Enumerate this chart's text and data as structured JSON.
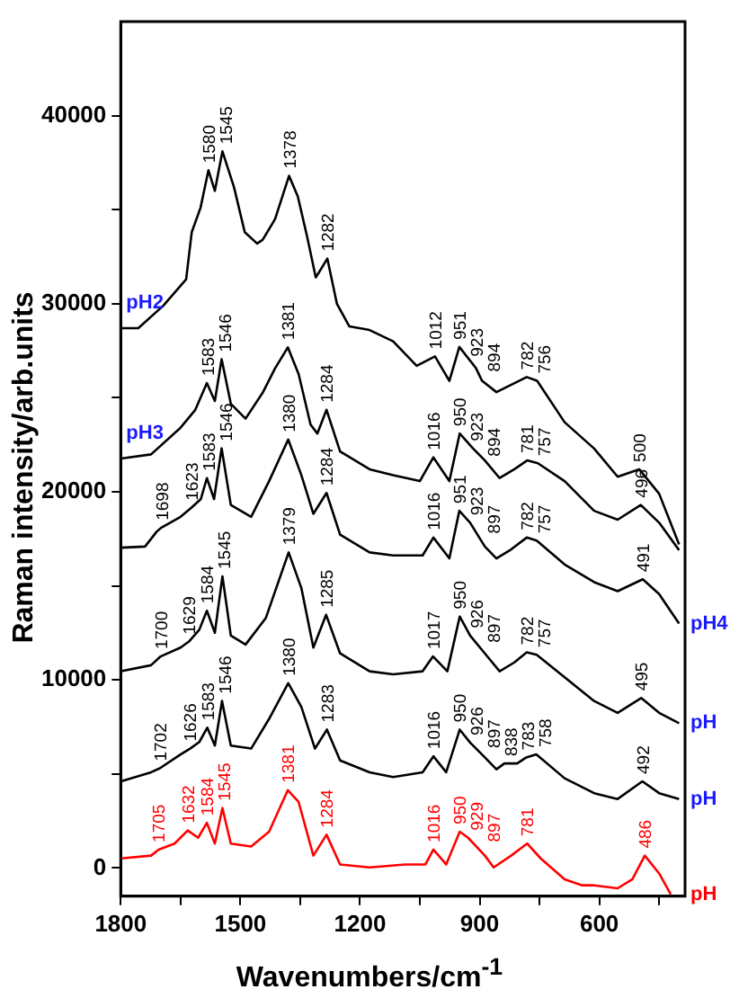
{
  "chart_data": {
    "type": "line",
    "xlabel": "Wavenumbers/cm$^{-1}$",
    "ylabel": "Raman intensity/arb.units",
    "xlim": [
      1800,
      385
    ],
    "xticks": [
      1800,
      {
        "value": 1650,
        "label": null
      },
      1500,
      {
        "value": 1350,
        "label": null
      },
      1200,
      {
        "value": 1050,
        "label": null
      },
      900,
      {
        "value": 750,
        "label": null
      },
      600,
      {
        "value": 450,
        "label": null
      }
    ],
    "ylim": [
      -1500,
      45000
    ],
    "yticks": [
      0,
      {
        "value": 5000,
        "label": null
      },
      10000,
      {
        "value": 15000,
        "label": null
      },
      20000,
      {
        "value": 25000,
        "label": null
      },
      30000,
      {
        "value": 35000,
        "label": null
      },
      40000
    ],
    "grid": false,
    "legend": false,
    "marker": "none",
    "line_style": "solid",
    "series": [
      {
        "name": "pH2",
        "color": "#000000",
        "x": [
          1800,
          1756,
          1693,
          1636,
          1622,
          1600,
          1580,
          1564,
          1545,
          1516,
          1489,
          1458,
          1444,
          1413,
          1378,
          1356,
          1333,
          1311,
          1302,
          1282,
          1258,
          1227,
          1176,
          1117,
          1058,
          1012,
          976,
          951,
          910,
          894,
          858,
          782,
          756,
          687,
          613,
          554,
          500,
          450,
          400
        ],
        "values": [
          28700,
          28700,
          29900,
          31300,
          33800,
          35100,
          37100,
          36000,
          38100,
          36200,
          33800,
          33200,
          33400,
          34500,
          36800,
          35700,
          33600,
          31400,
          31700,
          32400,
          30000,
          28800,
          28600,
          28000,
          26700,
          27200,
          25900,
          27700,
          26600,
          25900,
          25300,
          26100,
          25900,
          23700,
          22300,
          20800,
          21200,
          19900,
          17200
        ]
      },
      {
        "name": "pH3",
        "color": "#000000",
        "x": [
          1799,
          1724,
          1650,
          1613,
          1584,
          1564,
          1547,
          1524,
          1487,
          1443,
          1413,
          1381,
          1354,
          1324,
          1307,
          1284,
          1250,
          1176,
          1117,
          1050,
          1016,
          976,
          950,
          917,
          887,
          850,
          813,
          781,
          754,
          687,
          613,
          554,
          496,
          450,
          400
        ],
        "values": [
          21770,
          21990,
          23410,
          24360,
          25780,
          24830,
          27050,
          24680,
          23890,
          25310,
          26570,
          27680,
          26260,
          23570,
          23100,
          24360,
          22150,
          21200,
          20880,
          20570,
          21830,
          20570,
          23100,
          22310,
          21670,
          20730,
          21200,
          21670,
          21520,
          20570,
          18990,
          18520,
          19300,
          18360,
          16900
        ]
      },
      {
        "name": "pH4",
        "color": "#000000",
        "x": [
          1799,
          1739,
          1710,
          1698,
          1650,
          1623,
          1599,
          1584,
          1566,
          1547,
          1524,
          1473,
          1428,
          1380,
          1347,
          1317,
          1284,
          1250,
          1176,
          1117,
          1043,
          1016,
          976,
          951,
          924,
          887,
          858,
          821,
          782,
          757,
          687,
          613,
          554,
          491,
          450,
          400
        ],
        "values": [
          17030,
          17090,
          17880,
          18100,
          18670,
          19150,
          19620,
          20730,
          19620,
          22310,
          19300,
          18670,
          20570,
          22780,
          20880,
          18830,
          19940,
          17720,
          16780,
          16620,
          16620,
          17570,
          16460,
          18990,
          18360,
          17090,
          16460,
          16940,
          17570,
          17410,
          16140,
          15200,
          14720,
          15350,
          14560,
          13000
        ]
      },
      {
        "name": "pH",
        "color": "#000000",
        "x": [
          1799,
          1724,
          1700,
          1650,
          1629,
          1603,
          1584,
          1564,
          1545,
          1524,
          1487,
          1436,
          1379,
          1347,
          1317,
          1285,
          1250,
          1176,
          1117,
          1043,
          1017,
          981,
          950,
          924,
          887,
          850,
          813,
          782,
          757,
          687,
          613,
          554,
          495,
          450,
          400
        ],
        "values": [
          10460,
          10780,
          11250,
          11720,
          12040,
          12670,
          13680,
          12510,
          15510,
          12360,
          11880,
          13300,
          16780,
          14880,
          11720,
          13460,
          11410,
          10460,
          10300,
          10460,
          11250,
          10460,
          13370,
          12360,
          11410,
          10460,
          10930,
          11470,
          11340,
          10140,
          8880,
          8250,
          9040,
          8250,
          7700
        ]
      },
      {
        "name": "pH",
        "color": "#000000",
        "x": [
          1799,
          1724,
          1702,
          1650,
          1626,
          1603,
          1583,
          1564,
          1546,
          1524,
          1473,
          1428,
          1380,
          1347,
          1313,
          1283,
          1250,
          1176,
          1117,
          1043,
          1016,
          984,
          950,
          924,
          887,
          858,
          838,
          806,
          783,
          758,
          687,
          613,
          554,
          492,
          450,
          400
        ],
        "values": [
          4610,
          5090,
          5300,
          6040,
          6350,
          6700,
          7460,
          6510,
          8880,
          6510,
          6350,
          7930,
          9830,
          8560,
          6350,
          7360,
          5720,
          5090,
          4840,
          5090,
          5940,
          5090,
          7360,
          6670,
          5880,
          5250,
          5560,
          5560,
          5880,
          6040,
          4770,
          3980,
          3670,
          4610,
          3980,
          3670
        ]
      },
      {
        "name": "pH",
        "color": "#ff0000",
        "x": [
          1799,
          1724,
          1705,
          1665,
          1632,
          1606,
          1584,
          1564,
          1545,
          1524,
          1473,
          1428,
          1381,
          1354,
          1317,
          1284,
          1250,
          1176,
          1087,
          1036,
          1016,
          984,
          950,
          929,
          887,
          865,
          821,
          781,
          747,
          687,
          643,
          613,
          554,
          517,
          486,
          450,
          421
        ],
        "values": [
          510,
          660,
          980,
          1300,
          2000,
          1610,
          2400,
          1300,
          3190,
          1300,
          1140,
          1930,
          4140,
          3510,
          660,
          1770,
          190,
          30,
          190,
          190,
          980,
          190,
          1930,
          1610,
          660,
          30,
          660,
          1300,
          510,
          -600,
          -920,
          -920,
          -1080,
          -600,
          660,
          -290,
          -1400
        ]
      }
    ],
    "annotations": [
      {
        "text": "1580",
        "x": 1580,
        "y": 37100
      },
      {
        "text": "1545",
        "x": 1545,
        "y": 38100
      },
      {
        "text": "1378",
        "x": 1378,
        "y": 36800
      },
      {
        "text": "1282",
        "x": 1282,
        "y": 32400
      },
      {
        "text": "1012",
        "x": 1012,
        "y": 27200
      },
      {
        "text": "951",
        "x": 951,
        "y": 27700
      },
      {
        "text": "923",
        "x": 923,
        "y": 26800
      },
      {
        "text": "894",
        "x": 894,
        "y": 26000
      },
      {
        "text": "782",
        "x": 782,
        "y": 26100
      },
      {
        "text": "756",
        "x": 756,
        "y": 25900
      },
      {
        "text": "500",
        "x": 500,
        "y": 21200
      },
      {
        "text": "1583",
        "x": 1583,
        "y": 25780
      },
      {
        "text": "1546",
        "x": 1546,
        "y": 27050
      },
      {
        "text": "1381",
        "x": 1381,
        "y": 27680
      },
      {
        "text": "1284",
        "x": 1284,
        "y": 24360
      },
      {
        "text": "1016",
        "x": 1016,
        "y": 21830
      },
      {
        "text": "950",
        "x": 950,
        "y": 23100
      },
      {
        "text": "923",
        "x": 923,
        "y": 22310
      },
      {
        "text": "894",
        "x": 894,
        "y": 21500
      },
      {
        "text": "781",
        "x": 781,
        "y": 21670
      },
      {
        "text": "757",
        "x": 757,
        "y": 21520
      },
      {
        "text": "496",
        "x": 496,
        "y": 19300
      },
      {
        "text": "1698",
        "x": 1698,
        "y": 18100
      },
      {
        "text": "1623",
        "x": 1623,
        "y": 19150
      },
      {
        "text": "1583",
        "x": 1583,
        "y": 20730
      },
      {
        "text": "1546",
        "x": 1546,
        "y": 22310
      },
      {
        "text": "1380",
        "x": 1380,
        "y": 22780
      },
      {
        "text": "1284",
        "x": 1284,
        "y": 19940
      },
      {
        "text": "1016",
        "x": 1016,
        "y": 17570
      },
      {
        "text": "951",
        "x": 951,
        "y": 18990
      },
      {
        "text": "923",
        "x": 923,
        "y": 18360
      },
      {
        "text": "897",
        "x": 897,
        "y": 17400
      },
      {
        "text": "782",
        "x": 782,
        "y": 17570
      },
      {
        "text": "757",
        "x": 757,
        "y": 17410
      },
      {
        "text": "491",
        "x": 491,
        "y": 15350
      },
      {
        "text": "1700",
        "x": 1700,
        "y": 11250
      },
      {
        "text": "1629",
        "x": 1629,
        "y": 12040
      },
      {
        "text": "1584",
        "x": 1584,
        "y": 13680
      },
      {
        "text": "1545",
        "x": 1545,
        "y": 15510
      },
      {
        "text": "1379",
        "x": 1379,
        "y": 16780
      },
      {
        "text": "1285",
        "x": 1285,
        "y": 13460
      },
      {
        "text": "1017",
        "x": 1017,
        "y": 11250
      },
      {
        "text": "950",
        "x": 950,
        "y": 13370
      },
      {
        "text": "926",
        "x": 926,
        "y": 12360
      },
      {
        "text": "897",
        "x": 897,
        "y": 11600
      },
      {
        "text": "782",
        "x": 782,
        "y": 11470
      },
      {
        "text": "757",
        "x": 757,
        "y": 11340
      },
      {
        "text": "495",
        "x": 495,
        "y": 9040
      },
      {
        "text": "1702",
        "x": 1702,
        "y": 5300
      },
      {
        "text": "1626",
        "x": 1626,
        "y": 6350
      },
      {
        "text": "1583",
        "x": 1583,
        "y": 7460
      },
      {
        "text": "1546",
        "x": 1546,
        "y": 8880
      },
      {
        "text": "1380",
        "x": 1380,
        "y": 9830
      },
      {
        "text": "1283",
        "x": 1283,
        "y": 7360
      },
      {
        "text": "1016",
        "x": 1016,
        "y": 5940
      },
      {
        "text": "950",
        "x": 950,
        "y": 7360
      },
      {
        "text": "926",
        "x": 926,
        "y": 6670
      },
      {
        "text": "897",
        "x": 897,
        "y": 6000
      },
      {
        "text": "838",
        "x": 838,
        "y": 5560
      },
      {
        "text": "783",
        "x": 783,
        "y": 5880
      },
      {
        "text": "758",
        "x": 758,
        "y": 6040
      },
      {
        "text": "492",
        "x": 492,
        "y": 4610
      },
      {
        "text": "1705",
        "x": 1705,
        "y": 980
      },
      {
        "text": "1632",
        "x": 1632,
        "y": 2000
      },
      {
        "text": "1584",
        "x": 1584,
        "y": 2400
      },
      {
        "text": "1545",
        "x": 1545,
        "y": 3190
      },
      {
        "text": "1381",
        "x": 1381,
        "y": 4140
      },
      {
        "text": "1284",
        "x": 1284,
        "y": 1770
      },
      {
        "text": "1016",
        "x": 1016,
        "y": 980
      },
      {
        "text": "950",
        "x": 950,
        "y": 1930
      },
      {
        "text": "929",
        "x": 929,
        "y": 1610
      },
      {
        "text": "897",
        "x": 897,
        "y": 1000
      },
      {
        "text": "781",
        "x": 781,
        "y": 1300
      },
      {
        "text": "486",
        "x": 486,
        "y": 660
      }
    ]
  }
}
